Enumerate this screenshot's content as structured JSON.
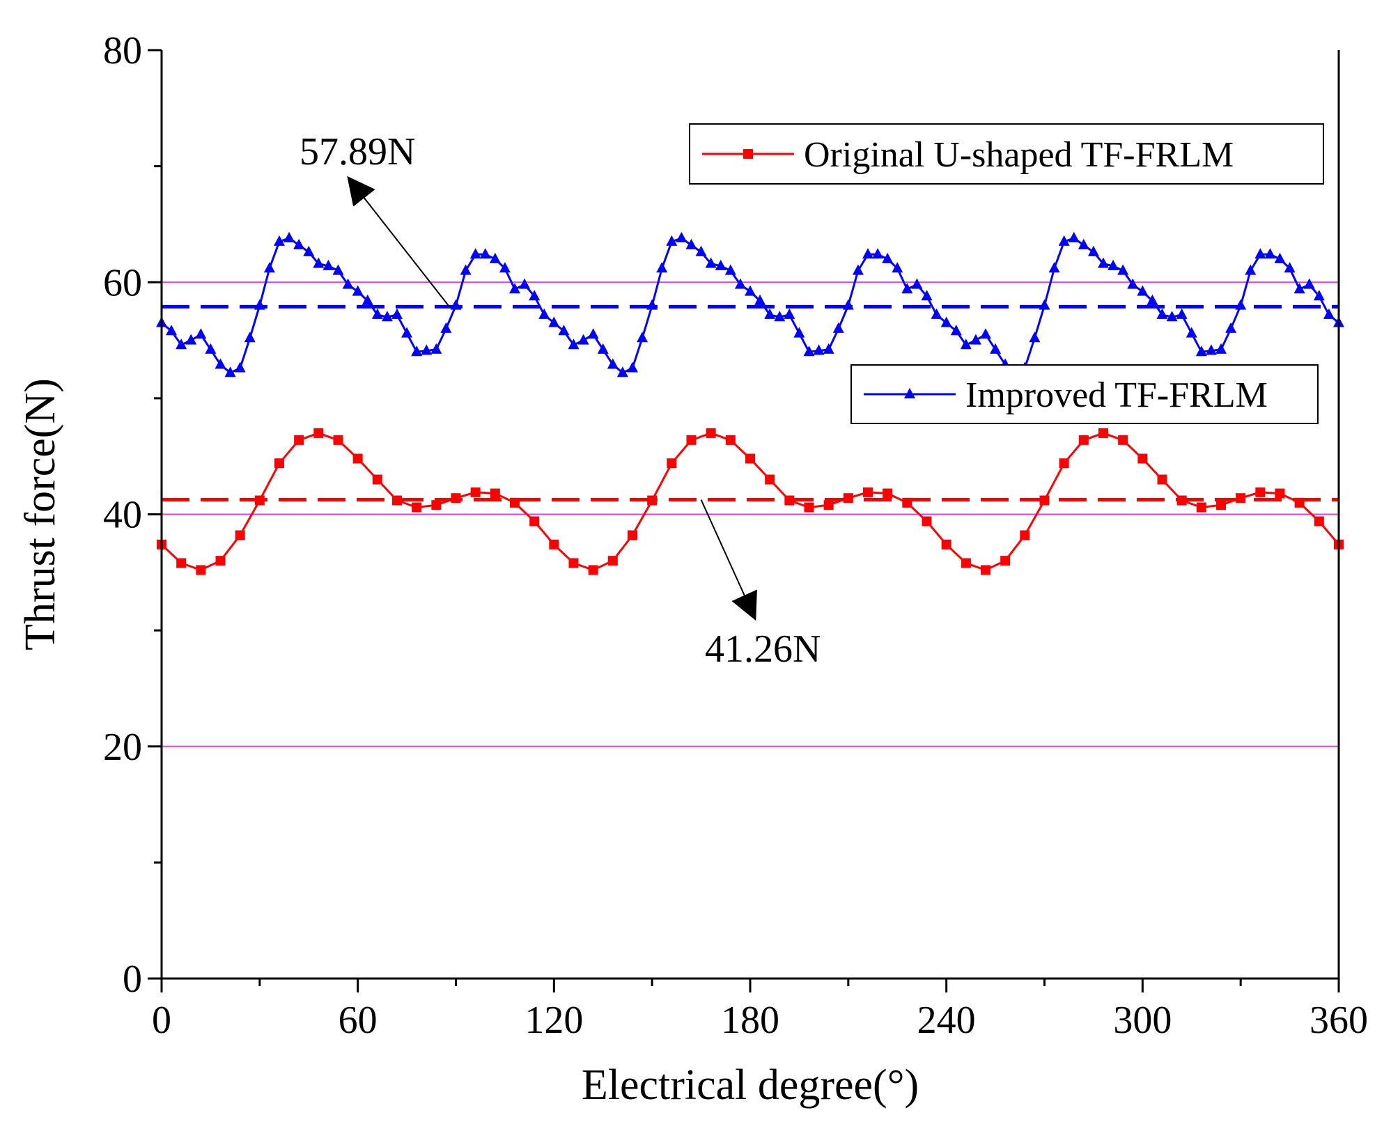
{
  "chart_data": {
    "type": "line",
    "title": "",
    "xlabel": "Electrical degree(°)",
    "ylabel": "Thrust force(N)",
    "xlim": [
      0,
      360
    ],
    "ylim": [
      0,
      80
    ],
    "xticks": [
      0,
      60,
      120,
      180,
      240,
      300,
      360
    ],
    "yticks": [
      0,
      20,
      40,
      60,
      80
    ],
    "x_minor_step": 30,
    "y_minor_step": 10,
    "reference_lines": [
      {
        "y": 20,
        "color": "#e040e0"
      },
      {
        "y": 40,
        "color": "#e040e0"
      },
      {
        "y": 60,
        "color": "#e040e0"
      }
    ],
    "series": [
      {
        "name": "Original U-shaped TF-FRLM",
        "color": "#ff0000",
        "marker": "square",
        "mean": 41.26,
        "x": [
          0,
          6,
          12,
          18,
          24,
          30,
          36,
          42,
          48,
          54,
          60,
          66,
          72,
          78,
          84,
          90,
          96,
          102,
          108,
          114,
          120,
          126,
          132,
          138,
          144,
          150,
          156,
          162,
          168,
          174,
          180,
          186,
          192,
          198,
          204,
          210,
          216,
          222,
          228,
          234,
          240,
          246,
          252,
          258,
          264,
          270,
          276,
          282,
          288,
          294,
          300,
          306,
          312,
          318,
          324,
          330,
          336,
          342,
          348,
          354,
          360
        ],
        "values": [
          37.4,
          35.8,
          35.2,
          36.0,
          38.2,
          41.2,
          44.4,
          46.4,
          47.0,
          46.4,
          44.8,
          43.0,
          41.2,
          40.6,
          40.8,
          41.4,
          41.9,
          41.8,
          41.0,
          39.4,
          37.4,
          35.8,
          35.2,
          36.0,
          38.2,
          41.2,
          44.4,
          46.4,
          47.0,
          46.4,
          44.8,
          43.0,
          41.2,
          40.6,
          40.8,
          41.4,
          41.9,
          41.8,
          41.0,
          39.4,
          37.4,
          35.8,
          35.2,
          36.0,
          38.2,
          41.2,
          44.4,
          46.4,
          47.0,
          46.4,
          44.8,
          43.0,
          41.2,
          40.6,
          40.8,
          41.4,
          41.9,
          41.8,
          41.0,
          39.4,
          37.4
        ]
      },
      {
        "name": "Improved TF-FRLM",
        "color": "#0000ff",
        "marker": "triangle",
        "mean": 57.89,
        "x": [
          0,
          3,
          6,
          9,
          12,
          15,
          18,
          21,
          24,
          27,
          30,
          33,
          36,
          39,
          42,
          45,
          48,
          51,
          54,
          57,
          60,
          63,
          66,
          69,
          72,
          75,
          78,
          81,
          84,
          87,
          90,
          93,
          96,
          99,
          102,
          105,
          108,
          111,
          114,
          117,
          120,
          123,
          126,
          129,
          132,
          135,
          138,
          141,
          144,
          147,
          150,
          153,
          156,
          159,
          162,
          165,
          168,
          171,
          174,
          177,
          180,
          183,
          186,
          189,
          192,
          195,
          198,
          201,
          204,
          207,
          210,
          213,
          216,
          219,
          222,
          225,
          228,
          231,
          234,
          237,
          240,
          243,
          246,
          249,
          252,
          255,
          258,
          261,
          264,
          267,
          270,
          273,
          276,
          279,
          282,
          285,
          288,
          291,
          294,
          297,
          300,
          303,
          306,
          309,
          312,
          315,
          318,
          321,
          324,
          327,
          330,
          333,
          336,
          339,
          342,
          345,
          348,
          351,
          354,
          357,
          360
        ],
        "values": [
          56.5,
          55.8,
          54.6,
          55.0,
          55.5,
          54.2,
          52.9,
          52.2,
          52.6,
          55.2,
          58.0,
          61.2,
          63.5,
          63.8,
          63.2,
          62.6,
          61.6,
          61.4,
          61.0,
          59.8,
          59.2,
          58.4,
          57.2,
          57.0,
          57.2,
          55.6,
          54.0,
          54.1,
          54.2,
          56.0,
          58.0,
          61.0,
          62.4,
          62.4,
          62.0,
          61.2,
          59.4,
          59.8,
          58.8,
          57.2,
          56.5,
          55.8,
          54.6,
          55.0,
          55.5,
          54.2,
          52.9,
          52.2,
          52.6,
          55.2,
          58.0,
          61.2,
          63.5,
          63.8,
          63.2,
          62.6,
          61.6,
          61.4,
          61.0,
          59.8,
          59.2,
          58.4,
          57.2,
          57.0,
          57.2,
          55.6,
          54.0,
          54.1,
          54.2,
          56.0,
          58.0,
          61.0,
          62.4,
          62.4,
          62.0,
          61.2,
          59.4,
          59.8,
          58.8,
          57.2,
          56.5,
          55.8,
          54.6,
          55.0,
          55.5,
          54.2,
          52.9,
          52.2,
          52.6,
          55.2,
          58.0,
          61.2,
          63.5,
          63.8,
          63.2,
          62.6,
          61.6,
          61.4,
          61.0,
          59.8,
          59.2,
          58.4,
          57.2,
          57.0,
          57.2,
          55.6,
          54.0,
          54.1,
          54.2,
          56.0,
          58.0,
          61.0,
          62.4,
          62.4,
          62.0,
          61.2,
          59.4,
          59.8,
          58.8,
          57.2,
          56.5
        ]
      }
    ],
    "annotations": [
      {
        "text": "57.89N",
        "target_x": 88,
        "target_y": 57.89,
        "series": 1
      },
      {
        "text": "41.26N",
        "target_x": 165,
        "target_y": 41.26,
        "series": 0
      }
    ],
    "legend": "top-right"
  }
}
